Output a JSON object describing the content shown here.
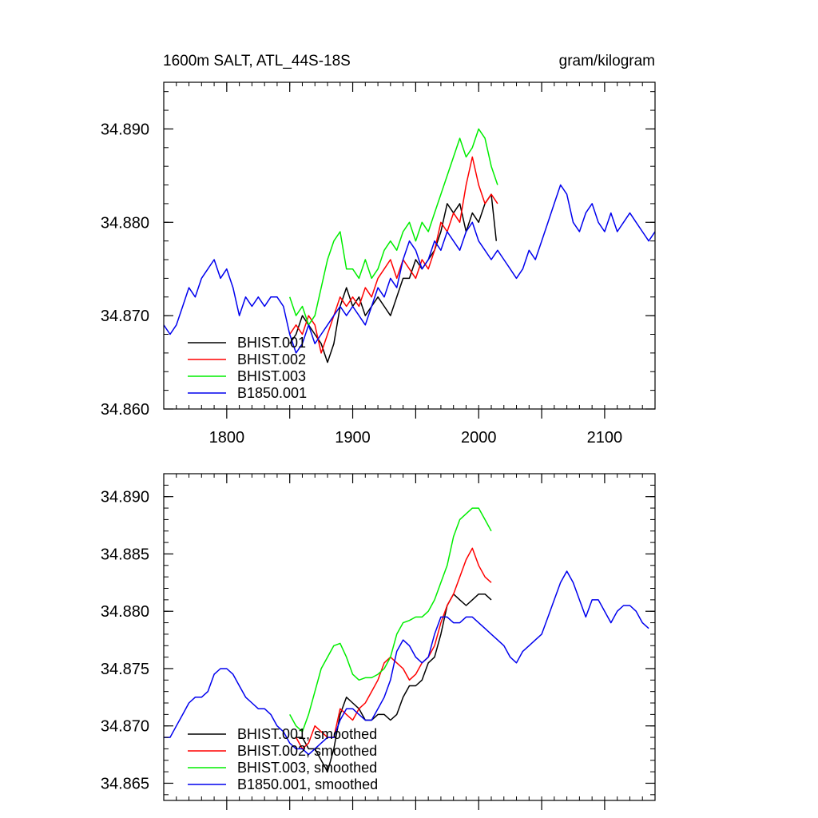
{
  "chart_data": [
    {
      "type": "line",
      "title": "1600m SALT, ATL_44S-18S",
      "units": "gram/kilogram",
      "xlim": [
        1750,
        2140
      ],
      "ylim": [
        34.86,
        34.895
      ],
      "xticks": [
        1800,
        1900,
        2000,
        2100
      ],
      "xtick_labels": [
        "1800",
        "1900",
        "2000",
        "2100"
      ],
      "yticks": [
        34.86,
        34.87,
        34.88,
        34.89
      ],
      "ytick_labels": [
        "34.860",
        "34.870",
        "34.880",
        "34.890"
      ],
      "legend_position": "bottom-left",
      "series": [
        {
          "name": "BHIST.001",
          "color": "#000000",
          "x": [
            1850,
            1855,
            1860,
            1865,
            1870,
            1875,
            1880,
            1885,
            1890,
            1895,
            1900,
            1905,
            1910,
            1915,
            1920,
            1925,
            1930,
            1935,
            1940,
            1945,
            1950,
            1955,
            1960,
            1965,
            1970,
            1975,
            1980,
            1985,
            1990,
            1995,
            2000,
            2005,
            2010,
            2014
          ],
          "y": [
            34.867,
            34.868,
            34.87,
            34.869,
            34.868,
            34.867,
            34.865,
            34.867,
            34.871,
            34.873,
            34.871,
            34.872,
            34.87,
            34.871,
            34.872,
            34.871,
            34.87,
            34.872,
            34.874,
            34.874,
            34.876,
            34.875,
            34.876,
            34.877,
            34.879,
            34.882,
            34.881,
            34.882,
            34.879,
            34.881,
            34.88,
            34.882,
            34.883,
            34.878
          ]
        },
        {
          "name": "BHIST.002",
          "color": "#ff0000",
          "x": [
            1850,
            1855,
            1860,
            1865,
            1870,
            1875,
            1880,
            1885,
            1890,
            1895,
            1900,
            1905,
            1910,
            1915,
            1920,
            1925,
            1930,
            1935,
            1940,
            1945,
            1950,
            1955,
            1960,
            1965,
            1970,
            1975,
            1980,
            1985,
            1990,
            1995,
            2000,
            2005,
            2010,
            2015
          ],
          "y": [
            34.868,
            34.869,
            34.868,
            34.87,
            34.869,
            34.866,
            34.868,
            34.87,
            34.872,
            34.871,
            34.872,
            34.871,
            34.873,
            34.872,
            34.874,
            34.875,
            34.876,
            34.874,
            34.876,
            34.875,
            34.874,
            34.876,
            34.875,
            34.877,
            34.88,
            34.879,
            34.881,
            34.88,
            34.884,
            34.887,
            34.884,
            34.882,
            34.883,
            34.882
          ]
        },
        {
          "name": "BHIST.003",
          "color": "#00ee00",
          "x": [
            1850,
            1855,
            1860,
            1865,
            1870,
            1875,
            1880,
            1885,
            1890,
            1895,
            1900,
            1905,
            1910,
            1915,
            1920,
            1925,
            1930,
            1935,
            1940,
            1945,
            1950,
            1955,
            1960,
            1965,
            1970,
            1975,
            1980,
            1985,
            1990,
            1995,
            2000,
            2005,
            2010,
            2015
          ],
          "y": [
            34.872,
            34.87,
            34.871,
            34.869,
            34.87,
            34.873,
            34.876,
            34.878,
            34.879,
            34.875,
            34.875,
            34.874,
            34.876,
            34.874,
            34.875,
            34.877,
            34.878,
            34.877,
            34.879,
            34.88,
            34.878,
            34.88,
            34.879,
            34.881,
            34.883,
            34.885,
            34.887,
            34.889,
            34.887,
            34.888,
            34.89,
            34.889,
            34.886,
            34.884
          ]
        },
        {
          "name": "B1850.001",
          "color": "#0000ee",
          "x": [
            1750,
            1755,
            1760,
            1765,
            1770,
            1775,
            1780,
            1785,
            1790,
            1795,
            1800,
            1805,
            1810,
            1815,
            1820,
            1825,
            1830,
            1835,
            1840,
            1845,
            1850,
            1855,
            1860,
            1865,
            1870,
            1875,
            1880,
            1885,
            1890,
            1895,
            1900,
            1905,
            1910,
            1915,
            1920,
            1925,
            1930,
            1935,
            1940,
            1945,
            1950,
            1955,
            1960,
            1965,
            1970,
            1975,
            1980,
            1985,
            1990,
            1995,
            2000,
            2005,
            2010,
            2015,
            2020,
            2025,
            2030,
            2035,
            2040,
            2045,
            2050,
            2055,
            2060,
            2065,
            2070,
            2075,
            2080,
            2085,
            2090,
            2095,
            2100,
            2105,
            2110,
            2115,
            2120,
            2125,
            2130,
            2135,
            2140
          ],
          "y": [
            34.869,
            34.868,
            34.869,
            34.871,
            34.873,
            34.872,
            34.874,
            34.875,
            34.876,
            34.874,
            34.875,
            34.873,
            34.87,
            34.872,
            34.871,
            34.872,
            34.871,
            34.872,
            34.872,
            34.871,
            34.868,
            34.866,
            34.867,
            34.869,
            34.867,
            34.868,
            34.869,
            34.87,
            34.871,
            34.87,
            34.871,
            34.87,
            34.869,
            34.871,
            34.873,
            34.872,
            34.874,
            34.873,
            34.876,
            34.878,
            34.877,
            34.875,
            34.876,
            34.878,
            34.877,
            34.879,
            34.878,
            34.877,
            34.879,
            34.88,
            34.878,
            34.877,
            34.876,
            34.877,
            34.876,
            34.875,
            34.874,
            34.875,
            34.877,
            34.876,
            34.878,
            34.88,
            34.882,
            34.884,
            34.883,
            34.88,
            34.879,
            34.881,
            34.882,
            34.88,
            34.879,
            34.881,
            34.879,
            34.88,
            34.881,
            34.88,
            34.879,
            34.878,
            34.879
          ]
        }
      ]
    },
    {
      "type": "line",
      "title": "",
      "xlim": [
        1750,
        2140
      ],
      "ylim": [
        34.8635,
        34.892
      ],
      "xticks": [
        1800,
        1850,
        1900,
        1950,
        2000,
        2050,
        2100
      ],
      "xtick_labels": [],
      "yticks": [
        34.865,
        34.87,
        34.875,
        34.88,
        34.885,
        34.89
      ],
      "ytick_labels": [
        "34.865",
        "34.870",
        "34.875",
        "34.880",
        "34.885",
        "34.890"
      ],
      "legend_position": "bottom-left",
      "series": [
        {
          "name": "BHIST.001, smoothed",
          "color": "#000000",
          "x": [
            1855,
            1860,
            1865,
            1870,
            1875,
            1880,
            1885,
            1890,
            1895,
            1900,
            1905,
            1910,
            1915,
            1920,
            1925,
            1930,
            1935,
            1940,
            1945,
            1950,
            1955,
            1960,
            1965,
            1970,
            1975,
            1980,
            1985,
            1990,
            1995,
            2000,
            2005,
            2010
          ],
          "y": [
            34.869,
            34.869,
            34.868,
            34.868,
            34.867,
            34.866,
            34.868,
            34.871,
            34.8725,
            34.872,
            34.8715,
            34.8705,
            34.8705,
            34.871,
            34.871,
            34.8705,
            34.871,
            34.8725,
            34.8735,
            34.8735,
            34.874,
            34.8755,
            34.876,
            34.878,
            34.8805,
            34.8815,
            34.881,
            34.8805,
            34.881,
            34.8815,
            34.8815,
            34.881
          ]
        },
        {
          "name": "BHIST.002, smoothed",
          "color": "#ff0000",
          "x": [
            1855,
            1860,
            1865,
            1870,
            1875,
            1880,
            1885,
            1890,
            1895,
            1900,
            1905,
            1910,
            1915,
            1920,
            1925,
            1930,
            1935,
            1940,
            1945,
            1950,
            1955,
            1960,
            1965,
            1970,
            1975,
            1980,
            1985,
            1990,
            1995,
            2000,
            2005,
            2010
          ],
          "y": [
            34.869,
            34.868,
            34.8685,
            34.87,
            34.8695,
            34.869,
            34.869,
            34.8715,
            34.871,
            34.8705,
            34.8715,
            34.872,
            34.873,
            34.874,
            34.8755,
            34.876,
            34.8755,
            34.875,
            34.874,
            34.8745,
            34.8755,
            34.876,
            34.877,
            34.879,
            34.8805,
            34.8815,
            34.883,
            34.8845,
            34.8855,
            34.884,
            34.883,
            34.8825
          ]
        },
        {
          "name": "BHIST.003, smoothed",
          "color": "#00ee00",
          "x": [
            1850,
            1855,
            1860,
            1865,
            1870,
            1875,
            1880,
            1885,
            1890,
            1895,
            1900,
            1905,
            1910,
            1915,
            1920,
            1925,
            1930,
            1935,
            1940,
            1945,
            1950,
            1955,
            1960,
            1965,
            1970,
            1975,
            1980,
            1985,
            1990,
            1995,
            2000,
            2005,
            2010
          ],
          "y": [
            34.871,
            34.87,
            34.8695,
            34.871,
            34.873,
            34.875,
            34.876,
            34.877,
            34.8772,
            34.876,
            34.8745,
            34.874,
            34.8742,
            34.8742,
            34.8745,
            34.875,
            34.876,
            34.878,
            34.879,
            34.8792,
            34.8795,
            34.8795,
            34.88,
            34.881,
            34.8825,
            34.884,
            34.8865,
            34.888,
            34.8885,
            34.889,
            34.889,
            34.888,
            34.887
          ]
        },
        {
          "name": "B1850.001, smoothed",
          "color": "#0000ee",
          "x": [
            1750,
            1755,
            1760,
            1765,
            1770,
            1775,
            1780,
            1785,
            1790,
            1795,
            1800,
            1805,
            1810,
            1815,
            1820,
            1825,
            1830,
            1835,
            1840,
            1845,
            1850,
            1855,
            1860,
            1865,
            1870,
            1875,
            1880,
            1885,
            1890,
            1895,
            1900,
            1905,
            1910,
            1915,
            1920,
            1925,
            1930,
            1935,
            1940,
            1945,
            1950,
            1955,
            1960,
            1965,
            1970,
            1975,
            1980,
            1985,
            1990,
            1995,
            2000,
            2005,
            2010,
            2015,
            2020,
            2025,
            2030,
            2035,
            2040,
            2045,
            2050,
            2055,
            2060,
            2065,
            2070,
            2075,
            2080,
            2085,
            2090,
            2095,
            2100,
            2105,
            2110,
            2115,
            2120,
            2125,
            2130,
            2135
          ],
          "y": [
            34.869,
            34.869,
            34.87,
            34.871,
            34.872,
            34.8725,
            34.8725,
            34.873,
            34.8745,
            34.875,
            34.875,
            34.8745,
            34.8735,
            34.8725,
            34.872,
            34.8715,
            34.8715,
            34.871,
            34.87,
            34.8695,
            34.8685,
            34.868,
            34.868,
            34.8675,
            34.868,
            34.8685,
            34.869,
            34.869,
            34.8705,
            34.8715,
            34.8715,
            34.871,
            34.8705,
            34.8705,
            34.8715,
            34.8725,
            34.874,
            34.8765,
            34.8775,
            34.877,
            34.876,
            34.8755,
            34.876,
            34.878,
            34.8795,
            34.8795,
            34.879,
            34.879,
            34.8795,
            34.8795,
            34.879,
            34.8785,
            34.878,
            34.8775,
            34.877,
            34.876,
            34.8755,
            34.8765,
            34.877,
            34.8775,
            34.878,
            34.8795,
            34.881,
            34.8825,
            34.8835,
            34.8825,
            34.881,
            34.8795,
            34.881,
            34.881,
            34.88,
            34.879,
            34.88,
            34.8805,
            34.8805,
            34.88,
            34.879,
            34.8785
          ]
        }
      ]
    }
  ],
  "colors": {
    "background": "#ffffff",
    "frame": "#000000"
  }
}
